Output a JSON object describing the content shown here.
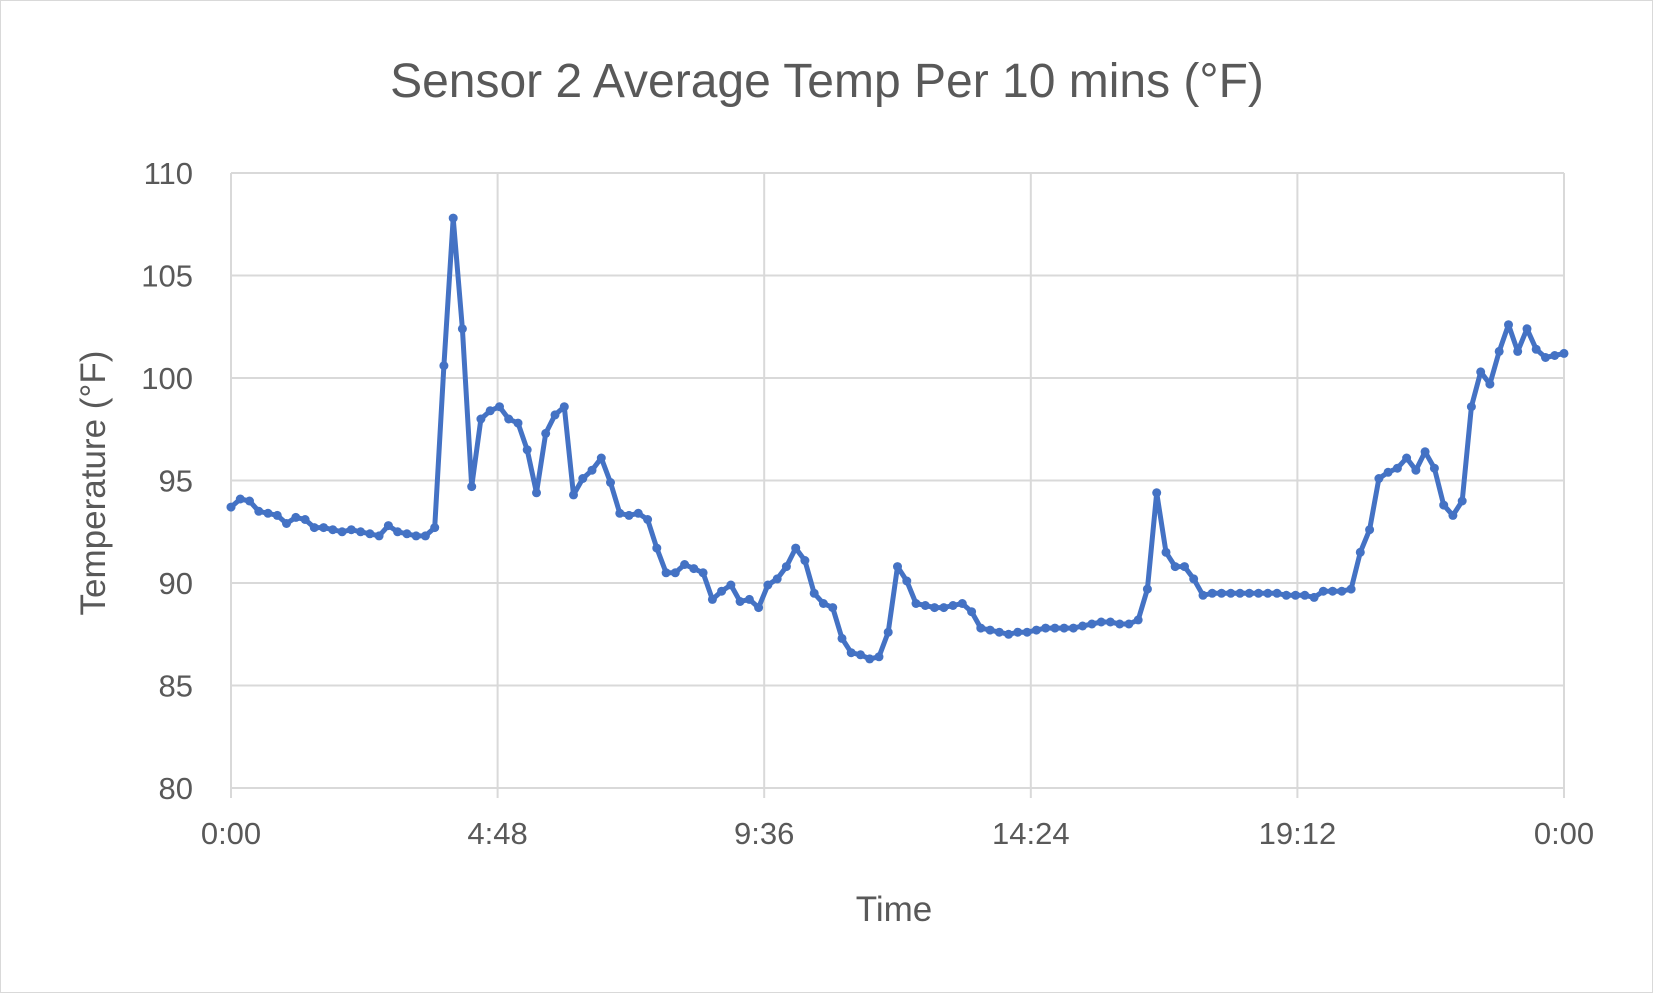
{
  "chart_data": {
    "type": "line",
    "title": "Sensor  2 Average Temp Per 10 mins (°F)",
    "xlabel": "Time",
    "ylabel": "Temperature (°F)",
    "xlim": [
      0,
      1440
    ],
    "ylim": [
      80,
      110
    ],
    "y_ticks": [
      80,
      85,
      90,
      95,
      100,
      105,
      110
    ],
    "x_ticks": [
      {
        "minutes": 0,
        "label": "0:00"
      },
      {
        "minutes": 288,
        "label": "4:48"
      },
      {
        "minutes": 576,
        "label": "9:36"
      },
      {
        "minutes": 864,
        "label": "14:24"
      },
      {
        "minutes": 1152,
        "label": "19:12"
      },
      {
        "minutes": 1440,
        "label": "0:00"
      }
    ],
    "grid": true,
    "legend": "none",
    "series_color": "#4472c4",
    "series": [
      {
        "x_step_minutes": 10,
        "values": [
          93.7,
          94.1,
          94.0,
          93.5,
          93.4,
          93.3,
          92.9,
          93.2,
          93.1,
          92.7,
          92.7,
          92.6,
          92.5,
          92.6,
          92.5,
          92.4,
          92.3,
          92.8,
          92.5,
          92.4,
          92.3,
          92.3,
          92.7,
          100.6,
          107.8,
          102.4,
          94.7,
          98.0,
          98.4,
          98.6,
          98.0,
          97.8,
          96.5,
          94.4,
          97.3,
          98.2,
          98.6,
          94.3,
          95.1,
          95.5,
          96.1,
          94.9,
          93.4,
          93.3,
          93.4,
          93.1,
          91.7,
          90.5,
          90.5,
          90.9,
          90.7,
          90.5,
          89.2,
          89.6,
          89.9,
          89.1,
          89.2,
          88.8,
          89.9,
          90.2,
          90.8,
          91.7,
          91.1,
          89.5,
          89.0,
          88.8,
          87.3,
          86.6,
          86.5,
          86.3,
          86.4,
          87.6,
          90.8,
          90.1,
          89.0,
          88.9,
          88.8,
          88.8,
          88.9,
          89.0,
          88.6,
          87.8,
          87.7,
          87.6,
          87.5,
          87.6,
          87.6,
          87.7,
          87.8,
          87.8,
          87.8,
          87.8,
          87.9,
          88.0,
          88.1,
          88.1,
          88.0,
          88.0,
          88.2,
          89.7,
          94.4,
          91.5,
          90.8,
          90.8,
          90.2,
          89.4,
          89.5,
          89.5,
          89.5,
          89.5,
          89.5,
          89.5,
          89.5,
          89.5,
          89.4,
          89.4,
          89.4,
          89.3,
          89.6,
          89.6,
          89.6,
          89.7,
          91.5,
          92.6,
          95.1,
          95.4,
          95.6,
          96.1,
          95.5,
          96.4,
          95.6,
          93.8,
          93.3,
          94.0,
          98.6,
          100.3,
          99.7,
          101.3,
          102.6,
          101.3,
          102.4,
          101.4,
          101.0,
          101.1,
          101.2
        ]
      }
    ]
  }
}
